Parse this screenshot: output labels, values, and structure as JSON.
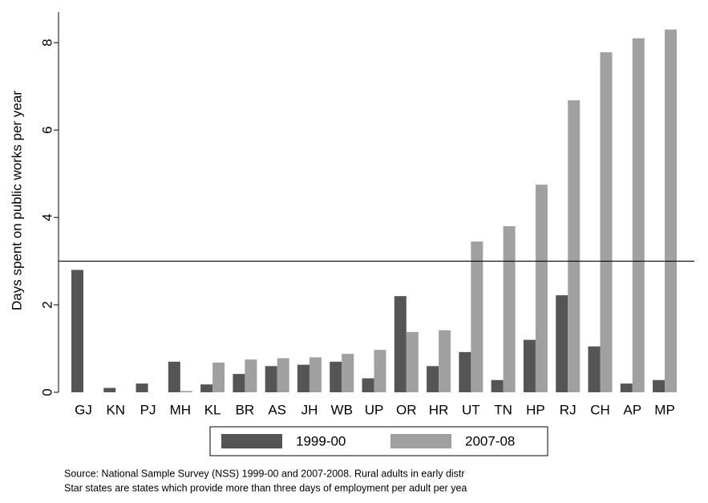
{
  "chart_data": {
    "type": "bar",
    "y_label": "Days spent on public works per year",
    "categories": [
      "GJ",
      "KN",
      "PJ",
      "MH",
      "KL",
      "BR",
      "AS",
      "JH",
      "WB",
      "UP",
      "OR",
      "HR",
      "UT",
      "TN",
      "HP",
      "RJ",
      "CH",
      "AP",
      "MP"
    ],
    "series": [
      {
        "name": "1999-00",
        "color": "#555555",
        "values": [
          2.8,
          0.1,
          0.2,
          0.7,
          0.18,
          0.42,
          0.6,
          0.63,
          0.7,
          0.32,
          2.2,
          0.6,
          0.92,
          0.28,
          1.2,
          2.22,
          1.05,
          0.2,
          0.28
        ]
      },
      {
        "name": "2007-08",
        "color": "#a0a0a0",
        "values": [
          0,
          0,
          0,
          0.03,
          0.68,
          0.75,
          0.78,
          0.8,
          0.88,
          0.97,
          1.38,
          1.42,
          3.45,
          3.8,
          4.75,
          6.68,
          7.78,
          8.1,
          8.3
        ]
      }
    ],
    "reference_line": 3,
    "ylim": [
      0,
      8.7
    ],
    "yticks": [
      0,
      2,
      4,
      6,
      8
    ],
    "notes": [
      "Source: National Sample Survey (NSS) 1999-00 and 2007-2008. Rural adults in early distr",
      "Star states are states which provide more than three days of employment per adult per yea"
    ]
  }
}
